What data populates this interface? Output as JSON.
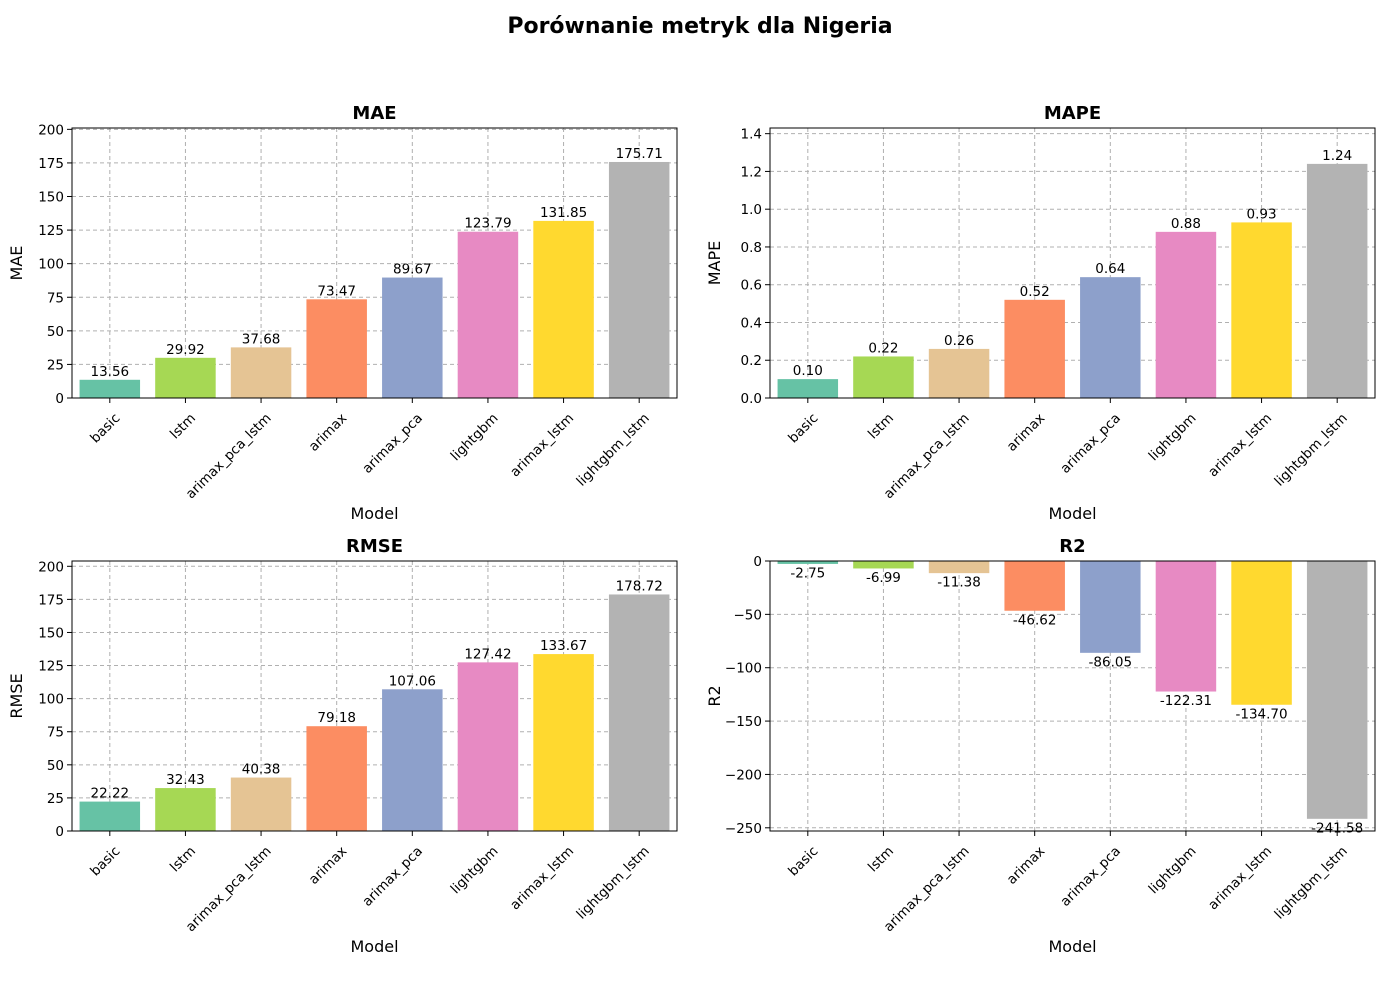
{
  "figure": {
    "title": "Porównanie metryk dla Nigeria"
  },
  "chart_data": [
    {
      "type": "bar",
      "title": "MAE",
      "xlabel": "Model",
      "ylabel": "MAE",
      "categories": [
        "basic",
        "lstm",
        "arimax_pca_lstm",
        "arimax",
        "arimax_pca",
        "lightgbm",
        "arimax_lstm",
        "lightgbm_lstm"
      ],
      "values": [
        13.56,
        29.92,
        37.68,
        73.47,
        89.67,
        123.79,
        131.85,
        175.71
      ],
      "labels": [
        "13.56",
        "29.92",
        "37.68",
        "73.47",
        "89.67",
        "123.79",
        "131.85",
        "175.71"
      ],
      "ylim": [
        0,
        201
      ],
      "yticks": [
        0,
        25,
        50,
        75,
        100,
        125,
        150,
        175,
        200
      ],
      "ytick_labels": [
        "0",
        "25",
        "50",
        "75",
        "100",
        "125",
        "150",
        "175",
        "200"
      ],
      "grid": true
    },
    {
      "type": "bar",
      "title": "MAPE",
      "xlabel": "Model",
      "ylabel": "MAPE",
      "categories": [
        "basic",
        "lstm",
        "arimax_pca_lstm",
        "arimax",
        "arimax_pca",
        "lightgbm",
        "arimax_lstm",
        "lightgbm_lstm"
      ],
      "values": [
        0.1,
        0.22,
        0.26,
        0.52,
        0.64,
        0.88,
        0.93,
        1.24
      ],
      "labels": [
        "0.10",
        "0.22",
        "0.26",
        "0.52",
        "0.64",
        "0.88",
        "0.93",
        "1.24"
      ],
      "ylim": [
        0,
        1.43
      ],
      "yticks": [
        0,
        0.2,
        0.4,
        0.6,
        0.8,
        1.0,
        1.2,
        1.4
      ],
      "ytick_labels": [
        "0.0",
        "0.2",
        "0.4",
        "0.6",
        "0.8",
        "1.0",
        "1.2",
        "1.4"
      ],
      "grid": true
    },
    {
      "type": "bar",
      "title": "RMSE",
      "xlabel": "Model",
      "ylabel": "RMSE",
      "categories": [
        "basic",
        "lstm",
        "arimax_pca_lstm",
        "arimax",
        "arimax_pca",
        "lightgbm",
        "arimax_lstm",
        "lightgbm_lstm"
      ],
      "values": [
        22.22,
        32.43,
        40.38,
        79.18,
        107.06,
        127.42,
        133.67,
        178.72
      ],
      "labels": [
        "22.22",
        "32.43",
        "40.38",
        "79.18",
        "107.06",
        "127.42",
        "133.67",
        "178.72"
      ],
      "ylim": [
        0,
        204
      ],
      "yticks": [
        0,
        25,
        50,
        75,
        100,
        125,
        150,
        175,
        200
      ],
      "ytick_labels": [
        "0",
        "25",
        "50",
        "75",
        "100",
        "125",
        "150",
        "175",
        "200"
      ],
      "grid": true
    },
    {
      "type": "bar",
      "title": "R2",
      "xlabel": "Model",
      "ylabel": "R2",
      "categories": [
        "basic",
        "lstm",
        "arimax_pca_lstm",
        "arimax",
        "arimax_pca",
        "lightgbm",
        "arimax_lstm",
        "lightgbm_lstm"
      ],
      "values": [
        -2.75,
        -6.99,
        -11.38,
        -46.62,
        -86.05,
        -122.31,
        -134.7,
        -241.58
      ],
      "labels": [
        "-2.75",
        "-6.99",
        "-11.38",
        "-46.62",
        "-86.05",
        "-122.31",
        "-134.70",
        "-241.58"
      ],
      "ylim": [
        -253,
        0
      ],
      "yticks": [
        0,
        -50,
        -100,
        -150,
        -200,
        -250
      ],
      "ytick_labels": [
        "0",
        "−50",
        "−100",
        "−150",
        "−200",
        "−250"
      ],
      "grid": true
    }
  ],
  "colors": {
    "palette": [
      "#66c2a5",
      "#a6d854",
      "#e5c494",
      "#fc8d62",
      "#8da0cb",
      "#e78ac3",
      "#ffd92f",
      "#b3b3b3"
    ],
    "grid": "#b0b0b0",
    "axis": "#000000"
  }
}
